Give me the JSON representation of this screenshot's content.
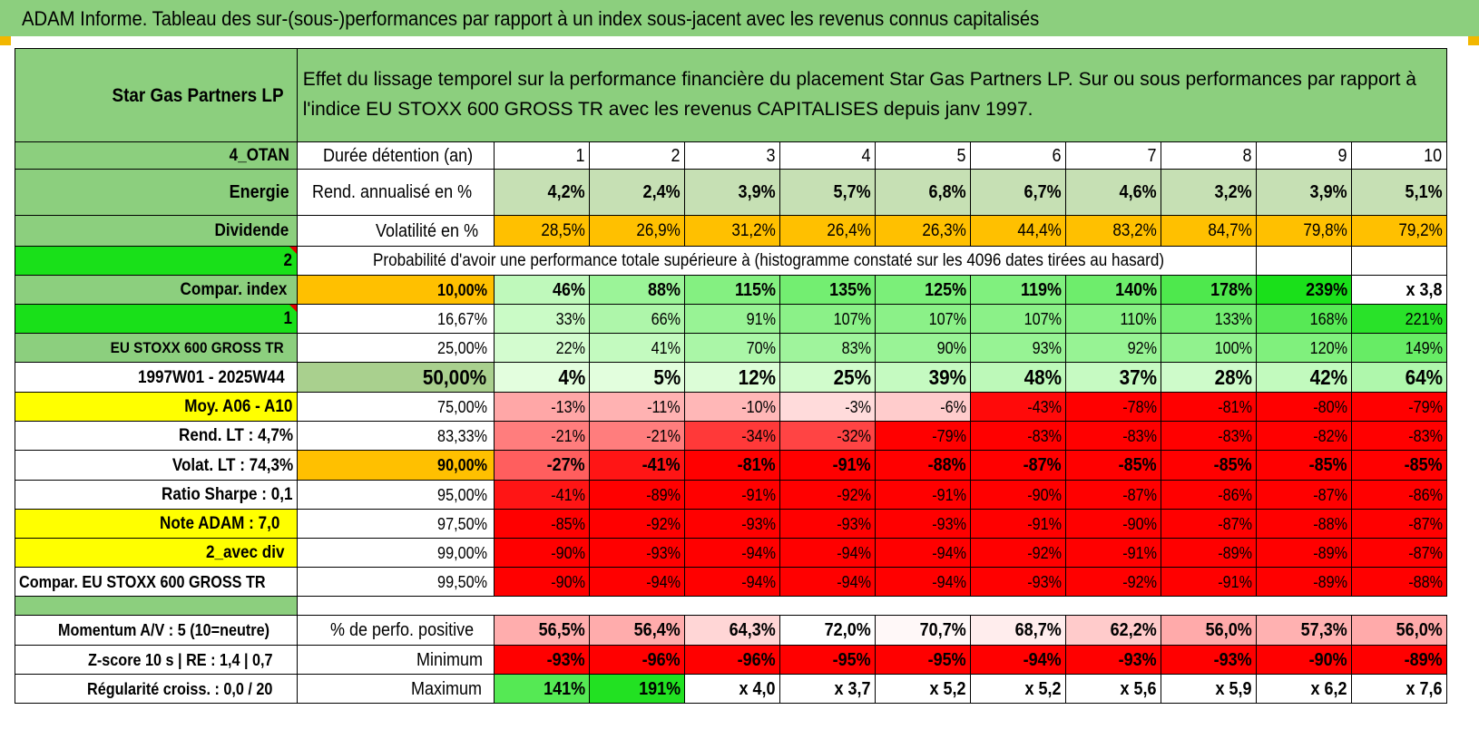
{
  "title": "ADAM Informe. Tableau des sur-(sous-)performances par rapport à un index sous-jacent avec les revenus connus capitalisés",
  "header": {
    "company": "Star Gas Partners LP",
    "description": "Effet du lissage temporel sur la performance financière du placement Star Gas Partners LP. Sur ou sous performances par rapport à l'indice EU STOXX 600 GROSS TR avec les revenus CAPITALISES depuis janv 1997."
  },
  "left": {
    "code": "4_OTAN",
    "sector": "Energie",
    "dividend": "Dividende",
    "num2": "2",
    "compar_index": "Compar. index",
    "num1": "1",
    "index_name": "EU STOXX 600 GROSS TR",
    "period": "1997W01 - 2025W44",
    "moy": "Moy. A06 - A10",
    "rend_lt": "Rend. LT :    4,7%",
    "volat_lt": "Volat. LT :    74,3%",
    "sharpe": "Ratio Sharpe :     0,1",
    "note": "Note ADAM : 7,0",
    "avec_div": "2_avec div",
    "compar_eu": "Compar. EU STOXX 600 GROSS TR",
    "momentum": "Momentum A/V : 5 (10=neutre)",
    "zscore": "Z-score 10 s | RE : 1,4 | 0,7",
    "regularite": "Régularité croiss. : 0,0 / 20"
  },
  "labels": {
    "duree": "Durée détention (an)",
    "rend": "Rend. annualisé en %",
    "volat": "Volatilité en %",
    "proba": "Probabilité d'avoir une performance totale supérieure à (histogramme constaté sur les 4096 dates tirées au hasard)",
    "perf_pos": "% de perfo. positive",
    "minimum": "Minimum",
    "maximum": "Maximum"
  },
  "years": [
    "1",
    "2",
    "3",
    "4",
    "5",
    "6",
    "7",
    "8",
    "9",
    "10"
  ],
  "rend": [
    "4,2%",
    "2,4%",
    "3,9%",
    "5,7%",
    "6,8%",
    "6,7%",
    "4,6%",
    "3,2%",
    "3,9%",
    "5,1%"
  ],
  "volat": [
    "28,5%",
    "26,9%",
    "31,2%",
    "26,4%",
    "26,3%",
    "44,4%",
    "83,2%",
    "84,7%",
    "79,8%",
    "79,2%"
  ],
  "quantiles": [
    {
      "q": "10,00%",
      "values": [
        "46%",
        "88%",
        "115%",
        "135%",
        "125%",
        "119%",
        "140%",
        "178%",
        "239%",
        "x 3,8"
      ]
    },
    {
      "q": "16,67%",
      "values": [
        "33%",
        "66%",
        "91%",
        "107%",
        "107%",
        "107%",
        "110%",
        "133%",
        "168%",
        "221%"
      ]
    },
    {
      "q": "25,00%",
      "values": [
        "22%",
        "41%",
        "70%",
        "83%",
        "90%",
        "93%",
        "92%",
        "100%",
        "120%",
        "149%"
      ]
    },
    {
      "q": "50,00%",
      "values": [
        "4%",
        "5%",
        "12%",
        "25%",
        "39%",
        "48%",
        "37%",
        "28%",
        "42%",
        "64%"
      ]
    },
    {
      "q": "75,00%",
      "values": [
        "-13%",
        "-11%",
        "-10%",
        "-3%",
        "-6%",
        "-43%",
        "-78%",
        "-81%",
        "-80%",
        "-79%"
      ]
    },
    {
      "q": "83,33%",
      "values": [
        "-21%",
        "-21%",
        "-34%",
        "-32%",
        "-79%",
        "-83%",
        "-83%",
        "-83%",
        "-82%",
        "-83%"
      ]
    },
    {
      "q": "90,00%",
      "values": [
        "-27%",
        "-41%",
        "-81%",
        "-91%",
        "-88%",
        "-87%",
        "-85%",
        "-85%",
        "-85%",
        "-85%"
      ]
    },
    {
      "q": "95,00%",
      "values": [
        "-41%",
        "-89%",
        "-91%",
        "-92%",
        "-91%",
        "-90%",
        "-87%",
        "-86%",
        "-87%",
        "-86%"
      ]
    },
    {
      "q": "97,50%",
      "values": [
        "-85%",
        "-92%",
        "-93%",
        "-93%",
        "-93%",
        "-91%",
        "-90%",
        "-87%",
        "-88%",
        "-87%"
      ]
    },
    {
      "q": "99,00%",
      "values": [
        "-90%",
        "-93%",
        "-94%",
        "-94%",
        "-94%",
        "-92%",
        "-91%",
        "-89%",
        "-89%",
        "-87%"
      ]
    },
    {
      "q": "99,50%",
      "values": [
        "-90%",
        "-94%",
        "-94%",
        "-94%",
        "-94%",
        "-93%",
        "-92%",
        "-91%",
        "-89%",
        "-88%"
      ]
    }
  ],
  "perf_pos": [
    "56,5%",
    "56,4%",
    "64,3%",
    "72,0%",
    "70,7%",
    "68,7%",
    "62,2%",
    "56,0%",
    "57,3%",
    "56,0%"
  ],
  "minimum": [
    "-93%",
    "-96%",
    "-96%",
    "-95%",
    "-95%",
    "-94%",
    "-93%",
    "-93%",
    "-90%",
    "-89%"
  ],
  "maximum": [
    "141%",
    "191%",
    "x 4,0",
    "x 3,7",
    "x 5,2",
    "x 5,2",
    "x 5,6",
    "x 5,9",
    "x 6,2",
    "x 7,6"
  ],
  "colors": {
    "header_green": "#8ccf7e",
    "bright_green": "#19e019",
    "orange": "#ffc000",
    "yellow": "#ffff00",
    "red": "#ff0000"
  }
}
